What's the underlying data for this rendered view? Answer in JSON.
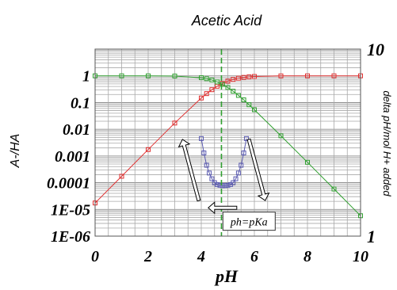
{
  "chart_data": {
    "type": "line",
    "title": "Acetic Acid",
    "xlabel": "pH",
    "ylabel": "A-/HA",
    "y2label": "delta pH/mol H+ added",
    "xlim": [
      0,
      10
    ],
    "ylim": [
      1e-06,
      10
    ],
    "y_scale": "log",
    "y2lim": [
      1,
      10
    ],
    "y2_scale": "log",
    "x_ticks": [
      "0",
      "2",
      "4",
      "6",
      "8",
      "10"
    ],
    "y_ticks": [
      "1",
      "0.1",
      "0.01",
      "0.001",
      "0.0001",
      "1E-05",
      "1E-06"
    ],
    "y2_ticks": [
      "10",
      "1"
    ],
    "grid": true,
    "colors": {
      "series_a": "#e03030",
      "series_b": "#30a030",
      "series_c": "#5a5ab0",
      "marker_line": "#30a030"
    },
    "series": [
      {
        "axis": "left",
        "x": [
          0,
          1,
          2,
          3,
          4,
          4.2,
          4.4,
          4.6,
          4.8,
          5.0,
          5.2,
          5.4,
          5.6,
          5.8,
          6.0,
          7.0,
          8.0,
          9.0,
          10.0
        ],
        "y": [
          1.74e-05,
          0.000174,
          0.00174,
          0.0171,
          0.148,
          0.216,
          0.303,
          0.408,
          0.524,
          0.635,
          0.734,
          0.815,
          0.874,
          0.917,
          0.946,
          0.994,
          0.999,
          1.0,
          1.0
        ]
      },
      {
        "axis": "left",
        "x": [
          0,
          1,
          2,
          3,
          4,
          4.2,
          4.4,
          4.6,
          4.8,
          5.0,
          5.2,
          5.4,
          5.6,
          5.8,
          6.0,
          7.0,
          8.0,
          9.0,
          10.0
        ],
        "y": [
          1.0,
          1.0,
          0.998,
          0.983,
          0.852,
          0.784,
          0.697,
          0.592,
          0.476,
          0.365,
          0.266,
          0.185,
          0.126,
          0.083,
          0.054,
          0.0057,
          0.00058,
          5.8e-05,
          5.8e-06
        ]
      },
      {
        "axis": "left",
        "x": [
          4.0,
          4.1,
          4.2,
          4.3,
          4.4,
          4.5,
          4.6,
          4.7,
          4.8,
          4.9,
          5.0,
          5.1,
          5.2,
          5.3,
          5.4,
          5.5,
          5.6,
          5.7
        ],
        "y": [
          0.0045,
          0.0013,
          0.00045,
          0.00023,
          0.00014,
          0.0001,
          8.5e-05,
          8e-05,
          7.8e-05,
          7.8e-05,
          8e-05,
          8.5e-05,
          0.0001,
          0.00014,
          0.00023,
          0.00045,
          0.0013,
          0.0045
        ]
      }
    ],
    "vertical_marker": {
      "x": 4.76,
      "style": "dashed"
    },
    "annotations": [
      {
        "text": "ph=pKa",
        "x": 5.8,
        "y": 3.5e-06
      }
    ],
    "arrows": [
      {
        "direction": "up-left",
        "x": 3.6,
        "y": 0.0003
      },
      {
        "direction": "down-right",
        "x": 6.1,
        "y": 0.0003
      },
      {
        "direction": "left",
        "x": 4.8,
        "y": 1.15e-05
      }
    ]
  }
}
